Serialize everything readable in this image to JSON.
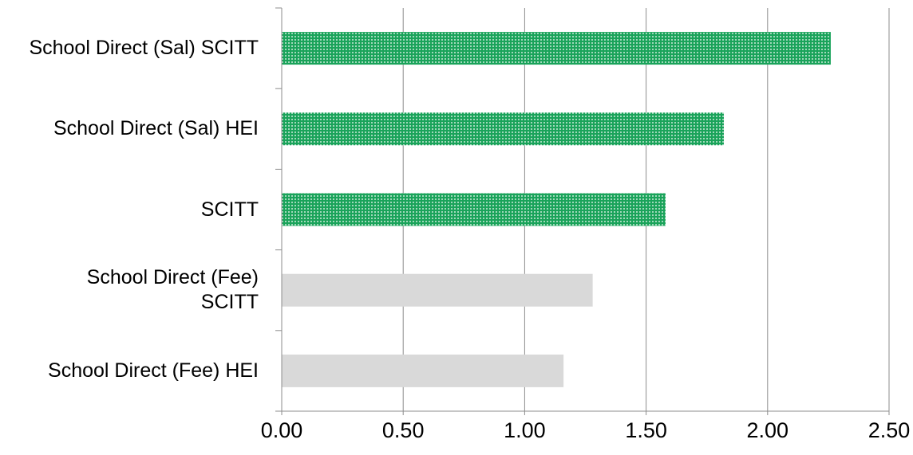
{
  "chart_data": {
    "type": "bar",
    "orientation": "horizontal",
    "categories": [
      "School Direct (Sal) SCITT",
      "School Direct (Sal) HEI",
      "SCITT",
      "School Direct (Fee)\nSCITT",
      "School Direct (Fee) HEI"
    ],
    "values": [
      2.26,
      1.82,
      1.58,
      1.28,
      1.16
    ],
    "bar_styles": [
      "green-dotted",
      "green-dotted",
      "green-dotted",
      "grey",
      "grey"
    ],
    "xlim": [
      0,
      2.5
    ],
    "xticks": [
      "0.00",
      "0.50",
      "1.00",
      "1.50",
      "2.00",
      "2.50"
    ],
    "grid": "vertical",
    "title": "",
    "xlabel": "",
    "ylabel": "",
    "legend": "none"
  },
  "colors": {
    "green": "#1aa35a",
    "green_dot": "#ffffff",
    "grey": "#d9d9d9",
    "grid": "#8c8c8c",
    "axis": "#8c8c8c"
  }
}
